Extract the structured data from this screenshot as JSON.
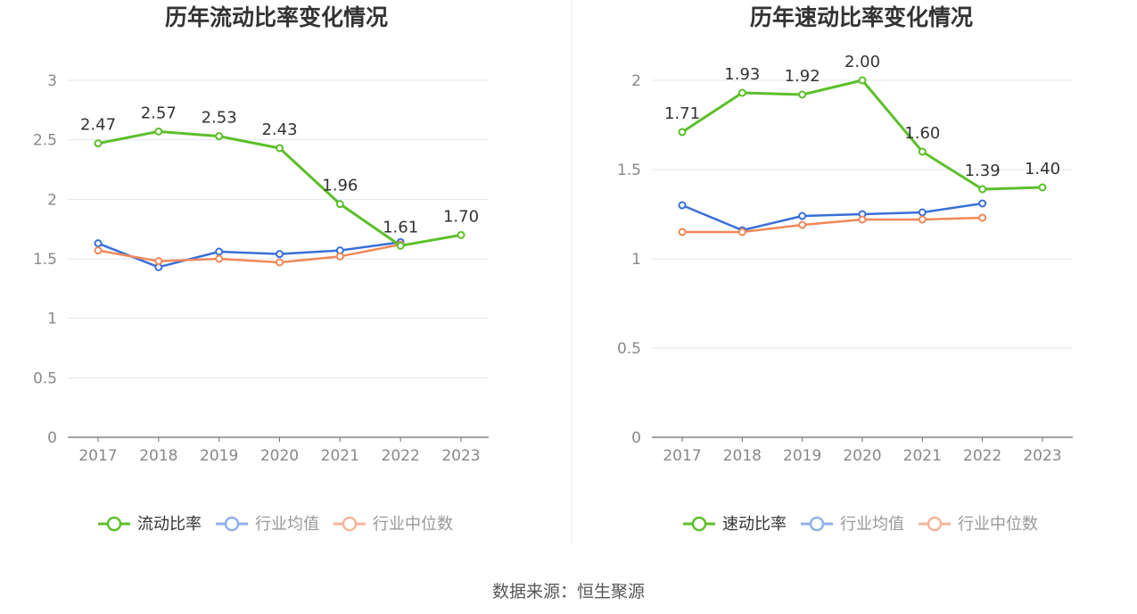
{
  "colors": {
    "main": "#5cbf2a",
    "avg": "#3a6fd8",
    "median": "#f0885a",
    "avg_legend": "#8fb0ee",
    "median_legend": "#f5b59a",
    "grid": "#e3e6f0",
    "axis": "#6e6e6e",
    "tick": "#888888",
    "title": "#333333",
    "label": "#333333"
  },
  "chart_data": [
    {
      "type": "line",
      "title": "历年流动比率变化情况",
      "categories": [
        "2017",
        "2018",
        "2019",
        "2020",
        "2021",
        "2022",
        "2023"
      ],
      "ylim": [
        0,
        3
      ],
      "yticks": [
        0,
        0.5,
        1,
        1.5,
        2,
        2.5,
        3
      ],
      "ytick_labels": [
        "0",
        "0.5",
        "1",
        "1.5",
        "2",
        "2.5",
        "3"
      ],
      "series": [
        {
          "name": "流动比率",
          "key": "main",
          "values": [
            2.47,
            2.57,
            2.53,
            2.43,
            1.96,
            1.61,
            1.7
          ],
          "labels": [
            "2.47",
            "2.57",
            "2.53",
            "2.43",
            "1.96",
            "1.61",
            "1.70"
          ]
        },
        {
          "name": "行业均值",
          "key": "avg",
          "values": [
            1.63,
            1.43,
            1.56,
            1.54,
            1.57,
            1.64,
            null
          ]
        },
        {
          "name": "行业中位数",
          "key": "median",
          "values": [
            1.57,
            1.48,
            1.5,
            1.47,
            1.52,
            1.62,
            null
          ]
        }
      ]
    },
    {
      "type": "line",
      "title": "历年速动比率变化情况",
      "categories": [
        "2017",
        "2018",
        "2019",
        "2020",
        "2021",
        "2022",
        "2023"
      ],
      "ylim": [
        0,
        2
      ],
      "yticks": [
        0,
        0.5,
        1,
        1.5,
        2
      ],
      "ytick_labels": [
        "0",
        "0.5",
        "1",
        "1.5",
        "2"
      ],
      "series": [
        {
          "name": "速动比率",
          "key": "main",
          "values": [
            1.71,
            1.93,
            1.92,
            2.0,
            1.6,
            1.39,
            1.4
          ],
          "labels": [
            "1.71",
            "1.93",
            "1.92",
            "2.00",
            "1.60",
            "1.39",
            "1.40"
          ]
        },
        {
          "name": "行业均值",
          "key": "avg",
          "values": [
            1.3,
            1.16,
            1.24,
            1.25,
            1.26,
            1.31,
            null
          ]
        },
        {
          "name": "行业中位数",
          "key": "median",
          "values": [
            1.15,
            1.15,
            1.19,
            1.22,
            1.22,
            1.23,
            null
          ]
        }
      ]
    }
  ],
  "source": "数据来源：恒生聚源"
}
